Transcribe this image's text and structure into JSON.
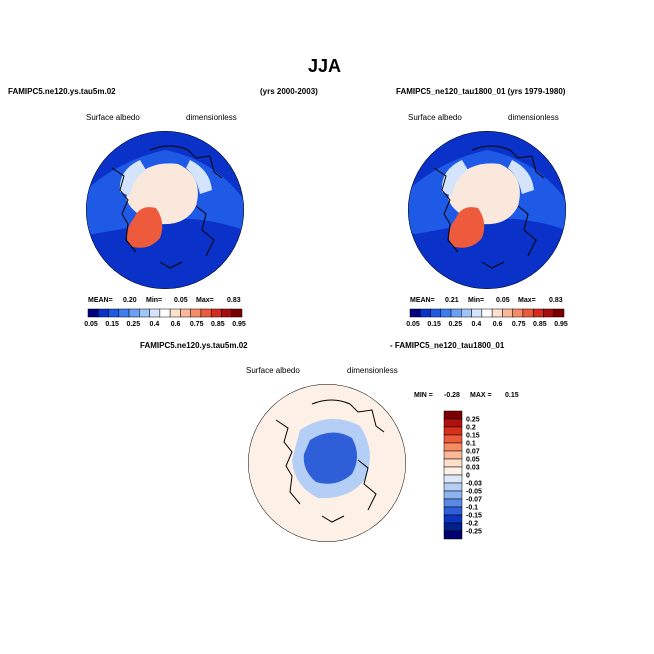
{
  "figure": {
    "title": "JJA",
    "top_left_case": "FAMIPC5.ne120.ys.tau5m.02",
    "top_left_years": "(yrs 2000-2003)",
    "top_right_case": "FAMIPC5_ne120_tau1800_01 (yrs 1979-1980)",
    "diff_left": "FAMIPC5.ne120.ys.tau5m.02",
    "diff_right": "- FAMIPC5_ne120_tau1800_01"
  },
  "panels": [
    {
      "variable": "Surface albedo",
      "units": "dimensionless",
      "stats": {
        "mean_label": "MEAN=",
        "mean": "0.20",
        "min_label": "Min=",
        "min": "0.05",
        "max_label": "Max=",
        "max": "0.83"
      }
    },
    {
      "variable": "Surface albedo",
      "units": "dimensionless",
      "stats": {
        "mean_label": "MEAN=",
        "mean": "0.21",
        "min_label": "Min=",
        "min": "0.05",
        "max_label": "Max=",
        "max": "0.83"
      }
    },
    {
      "variable": "Surface albedo",
      "units": "dimensionless",
      "stats": {
        "min_label": "MIN =",
        "min": "-0.28",
        "max_label": "MAX =",
        "max": "0.15"
      }
    }
  ],
  "colorbar_main": {
    "labels": [
      "0.05",
      "0.15",
      "0.25",
      "0.4",
      "0.6",
      "0.75",
      "0.85",
      "0.95"
    ],
    "colors": [
      "#000080",
      "#0a32c8",
      "#1e5ae6",
      "#3c7ef0",
      "#6aa0f5",
      "#a0c4fa",
      "#d4e4fc",
      "#ffffff",
      "#fde0cc",
      "#fbb898",
      "#f78c64",
      "#ee5a3c",
      "#d62a1e",
      "#a80c0c",
      "#7a0000"
    ]
  },
  "colorbar_diff": {
    "labels": [
      "0.25",
      "0.2",
      "0.15",
      "0.1",
      "0.07",
      "0.05",
      "0.03",
      "0",
      "-0.03",
      "-0.05",
      "-0.07",
      "-0.1",
      "-0.15",
      "-0.2",
      "-0.25"
    ],
    "colors": [
      "#7a0000",
      "#b01010",
      "#d83018",
      "#ee5a3c",
      "#f78c64",
      "#fbb898",
      "#fde0cc",
      "#fdf0e6",
      "#dce8fa",
      "#b4cef6",
      "#8cb2f0",
      "#5a8ae6",
      "#2e5ed8",
      "#0c34c0",
      "#00208c",
      "#000070"
    ]
  },
  "map_colors": {
    "ocean": "#0a32c8",
    "ocean_mid": "#1e5ae6",
    "seaice": "#fbe8dc",
    "seaice_light": "#d4e4fc",
    "greenland": "#ee5a3c",
    "diff_bg": "#fdf0e6",
    "diff_blue": "#2e5ed8",
    "diff_lightblue": "#b4cef6"
  }
}
